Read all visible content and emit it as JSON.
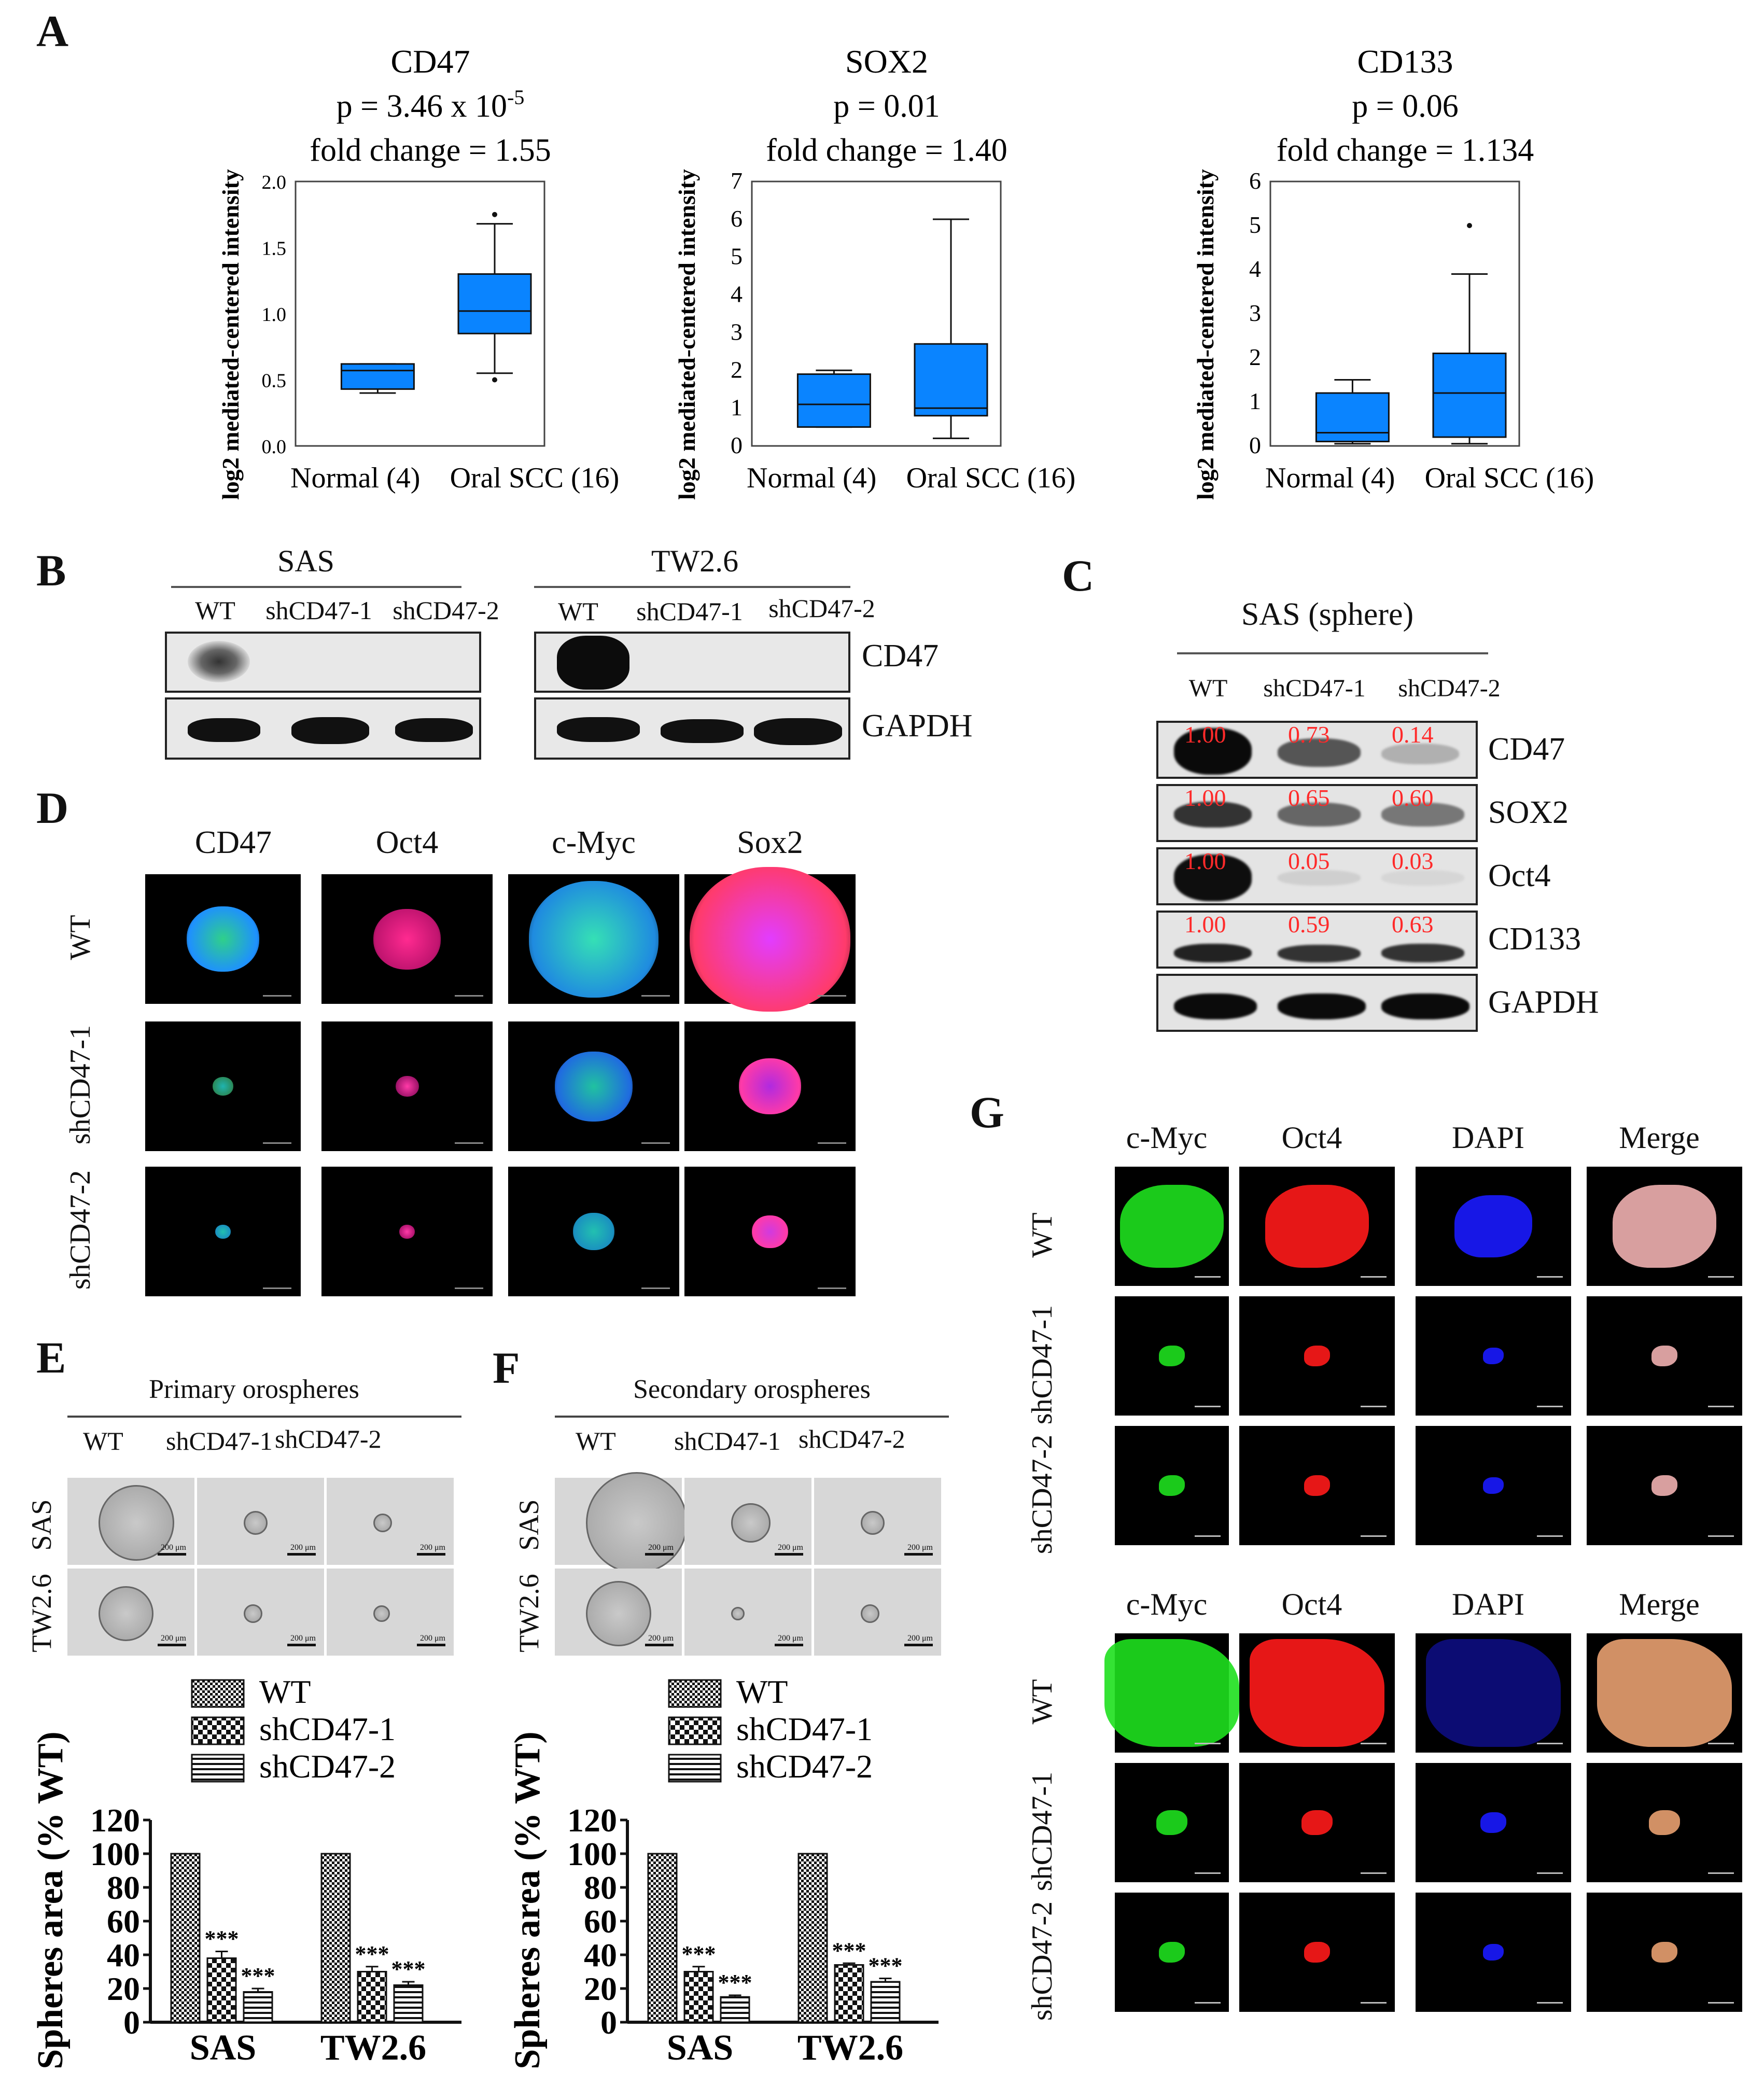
{
  "panels": {
    "A": "A",
    "B": "B",
    "C": "C",
    "D": "D",
    "E": "E",
    "F": "F",
    "G": "G"
  },
  "panel_a": {
    "ylabel": "log2 mediated-centered intensity",
    "plots": [
      {
        "title": "CD47",
        "pvalue": "p = 3.46 x 10",
        "pexp": "-5",
        "fold": "fold change  = 1.55",
        "yticks": [
          "2.0",
          "1.5",
          "1.0",
          "0.5",
          "0.0"
        ],
        "xlabels": [
          "Normal (4)",
          "Oral SCC (16)"
        ]
      },
      {
        "title": "SOX2",
        "pvalue": "p = 0.01",
        "pexp": "",
        "fold": "fold change  = 1.40",
        "yticks": [
          "7",
          "6",
          "5",
          "4",
          "3",
          "2",
          "1",
          "0"
        ],
        "xlabels": [
          "Normal (4)",
          "Oral SCC (16)"
        ]
      },
      {
        "title": "CD133",
        "pvalue": "p = 0.06",
        "pexp": "",
        "fold": "fold change  = 1.134",
        "yticks": [
          "6",
          "5",
          "4",
          "3",
          "2",
          "1",
          "0"
        ],
        "xlabels": [
          "Normal (4)",
          "Oral SCC (16)"
        ]
      }
    ]
  },
  "panel_b": {
    "groups": [
      {
        "title": "SAS",
        "lanes": [
          "WT",
          "shCD47-1",
          "shCD47-2"
        ]
      },
      {
        "title": "TW2.6",
        "lanes": [
          "WT",
          "shCD47-1",
          "shCD47-2"
        ]
      }
    ],
    "proteins": [
      "CD47",
      "GAPDH"
    ]
  },
  "panel_c": {
    "title": "SAS (sphere)",
    "lanes": [
      "WT",
      "shCD47-1",
      "shCD47-2"
    ],
    "rows": [
      {
        "protein": "CD47",
        "values": [
          "1.00",
          "0.73",
          "0.14"
        ]
      },
      {
        "protein": "SOX2",
        "values": [
          "1.00",
          "0.65",
          "0.60"
        ]
      },
      {
        "protein": "Oct4",
        "values": [
          "1.00",
          "0.05",
          "0.03"
        ]
      },
      {
        "protein": "CD133",
        "values": [
          "1.00",
          "0.59",
          "0.63"
        ]
      },
      {
        "protein": "GAPDH",
        "values": []
      }
    ]
  },
  "panel_d": {
    "columns": [
      "CD47",
      "Oct4",
      "c-Myc",
      "Sox2"
    ],
    "rows": [
      "WT",
      "shCD47-1",
      "shCD47-2"
    ]
  },
  "panel_e": {
    "title": "Primary orospheres",
    "lanes": [
      "WT",
      "shCD47-1",
      "shCD47-2"
    ],
    "rows": [
      "SAS",
      "TW2.6"
    ],
    "scale": "200 μm"
  },
  "panel_f": {
    "title": "Secondary orospheres",
    "lanes": [
      "WT",
      "shCD47-1",
      "shCD47-2"
    ],
    "rows": [
      "SAS",
      "TW2.6"
    ],
    "scale": "200 μm"
  },
  "panel_g": {
    "blocks": [
      {
        "columns": [
          "c-Myc",
          "Oct4",
          "DAPI",
          "Merge"
        ],
        "rows": [
          "WT",
          "shCD47-1",
          "shCD47-2"
        ]
      },
      {
        "columns": [
          "c-Myc",
          "Oct4",
          "DAPI",
          "Merge"
        ],
        "rows": [
          "WT",
          "shCD47-1",
          "shCD47-2"
        ]
      }
    ]
  },
  "colors": {
    "box": "#0a84ff",
    "ratio": "#ff2a2a"
  },
  "chart_data": [
    {
      "type": "box",
      "title": "CD47",
      "ylabel": "log2 mediated-centered intensity",
      "ylim": [
        0,
        2.0
      ],
      "categories": [
        "Normal (4)",
        "Oral SCC (16)"
      ],
      "boxes": [
        {
          "whisker_low": 0.4,
          "q1": 0.43,
          "median": 0.57,
          "q3": 0.62,
          "whisker_high": 0.62,
          "outliers": []
        },
        {
          "whisker_low": 0.55,
          "q1": 0.85,
          "median": 1.02,
          "q3": 1.3,
          "whisker_high": 1.68,
          "outliers": [
            0.5,
            1.75
          ]
        }
      ]
    },
    {
      "type": "box",
      "title": "SOX2",
      "ylabel": "log2 mediated-centered intensity",
      "ylim": [
        0,
        7
      ],
      "categories": [
        "Normal (4)",
        "Oral SCC (16)"
      ],
      "boxes": [
        {
          "whisker_low": 0.5,
          "q1": 0.5,
          "median": 1.1,
          "q3": 1.9,
          "whisker_high": 2.0,
          "outliers": []
        },
        {
          "whisker_low": 0.2,
          "q1": 0.8,
          "median": 1.0,
          "q3": 2.7,
          "whisker_high": 6.0,
          "outliers": []
        }
      ]
    },
    {
      "type": "box",
      "title": "CD133",
      "ylabel": "log2 mediated-centered intensity",
      "ylim": [
        0,
        6
      ],
      "categories": [
        "Normal (4)",
        "Oral SCC (16)"
      ],
      "boxes": [
        {
          "whisker_low": 0.05,
          "q1": 0.1,
          "median": 0.3,
          "q3": 1.2,
          "whisker_high": 1.5,
          "outliers": []
        },
        {
          "whisker_low": 0.05,
          "q1": 0.2,
          "median": 1.2,
          "q3": 2.1,
          "whisker_high": 3.9,
          "outliers": [
            5.0
          ]
        }
      ]
    },
    {
      "type": "bar",
      "title": "",
      "ylabel": "Spheres area (% WT)",
      "ylim": [
        0,
        120
      ],
      "yticks": [
        "0",
        "20",
        "40",
        "60",
        "80",
        "100",
        "120"
      ],
      "categories": [
        "SAS",
        "TW2.6"
      ],
      "series": [
        {
          "name": "WT",
          "values": [
            100,
            100
          ],
          "sig": [
            "",
            ""
          ]
        },
        {
          "name": "shCD47-1",
          "values": [
            38,
            30
          ],
          "err": [
            4,
            3
          ],
          "sig": [
            "***",
            "***"
          ]
        },
        {
          "name": "shCD47-2",
          "values": [
            18,
            22
          ],
          "err": [
            2,
            2
          ],
          "sig": [
            "***",
            "***"
          ]
        }
      ]
    },
    {
      "type": "bar",
      "title": "",
      "ylabel": "Spheres area (% WT)",
      "ylim": [
        0,
        120
      ],
      "yticks": [
        "0",
        "20",
        "40",
        "60",
        "80",
        "100",
        "120"
      ],
      "categories": [
        "SAS",
        "TW2.6"
      ],
      "series": [
        {
          "name": "WT",
          "values": [
            100,
            100
          ],
          "sig": [
            "",
            ""
          ]
        },
        {
          "name": "shCD47-1",
          "values": [
            30,
            34
          ],
          "err": [
            3,
            1
          ],
          "sig": [
            "***",
            "***"
          ]
        },
        {
          "name": "shCD47-2",
          "values": [
            15,
            24
          ],
          "err": [
            1,
            2
          ],
          "sig": [
            "***",
            "***"
          ]
        }
      ]
    }
  ]
}
